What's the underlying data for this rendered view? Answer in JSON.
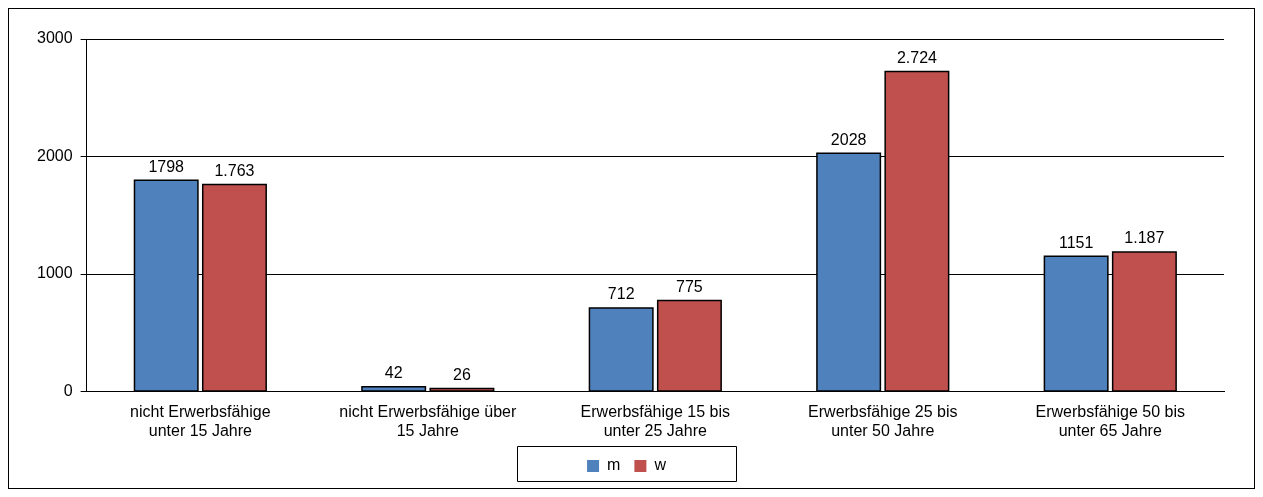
{
  "chart_data": {
    "type": "bar",
    "categories": [
      "nicht Erwerbsfähige unter 15 Jahre",
      "nicht Erwerbsfähige über 15 Jahre",
      "Erwerbsfähige 15 bis unter 25 Jahre",
      "Erwerbsfähige 25 bis unter 50 Jahre",
      "Erwerbsfähige 50 bis unter 65 Jahre"
    ],
    "series": [
      {
        "name": "m",
        "color": "#4f81bd",
        "values": [
          1798,
          42,
          712,
          2028,
          1151
        ],
        "value_labels": [
          "1798",
          "42",
          "712",
          "2028",
          "1151"
        ]
      },
      {
        "name": "w",
        "color": "#c0504d",
        "values": [
          1763,
          26,
          775,
          2724,
          1187
        ],
        "value_labels": [
          "1.763",
          "26",
          "775",
          "2.724",
          "1.187"
        ]
      }
    ],
    "ylim": [
      0,
      3000
    ],
    "yticks": [
      0,
      1000,
      2000,
      3000
    ],
    "grid": "y",
    "legend": "bottom"
  }
}
